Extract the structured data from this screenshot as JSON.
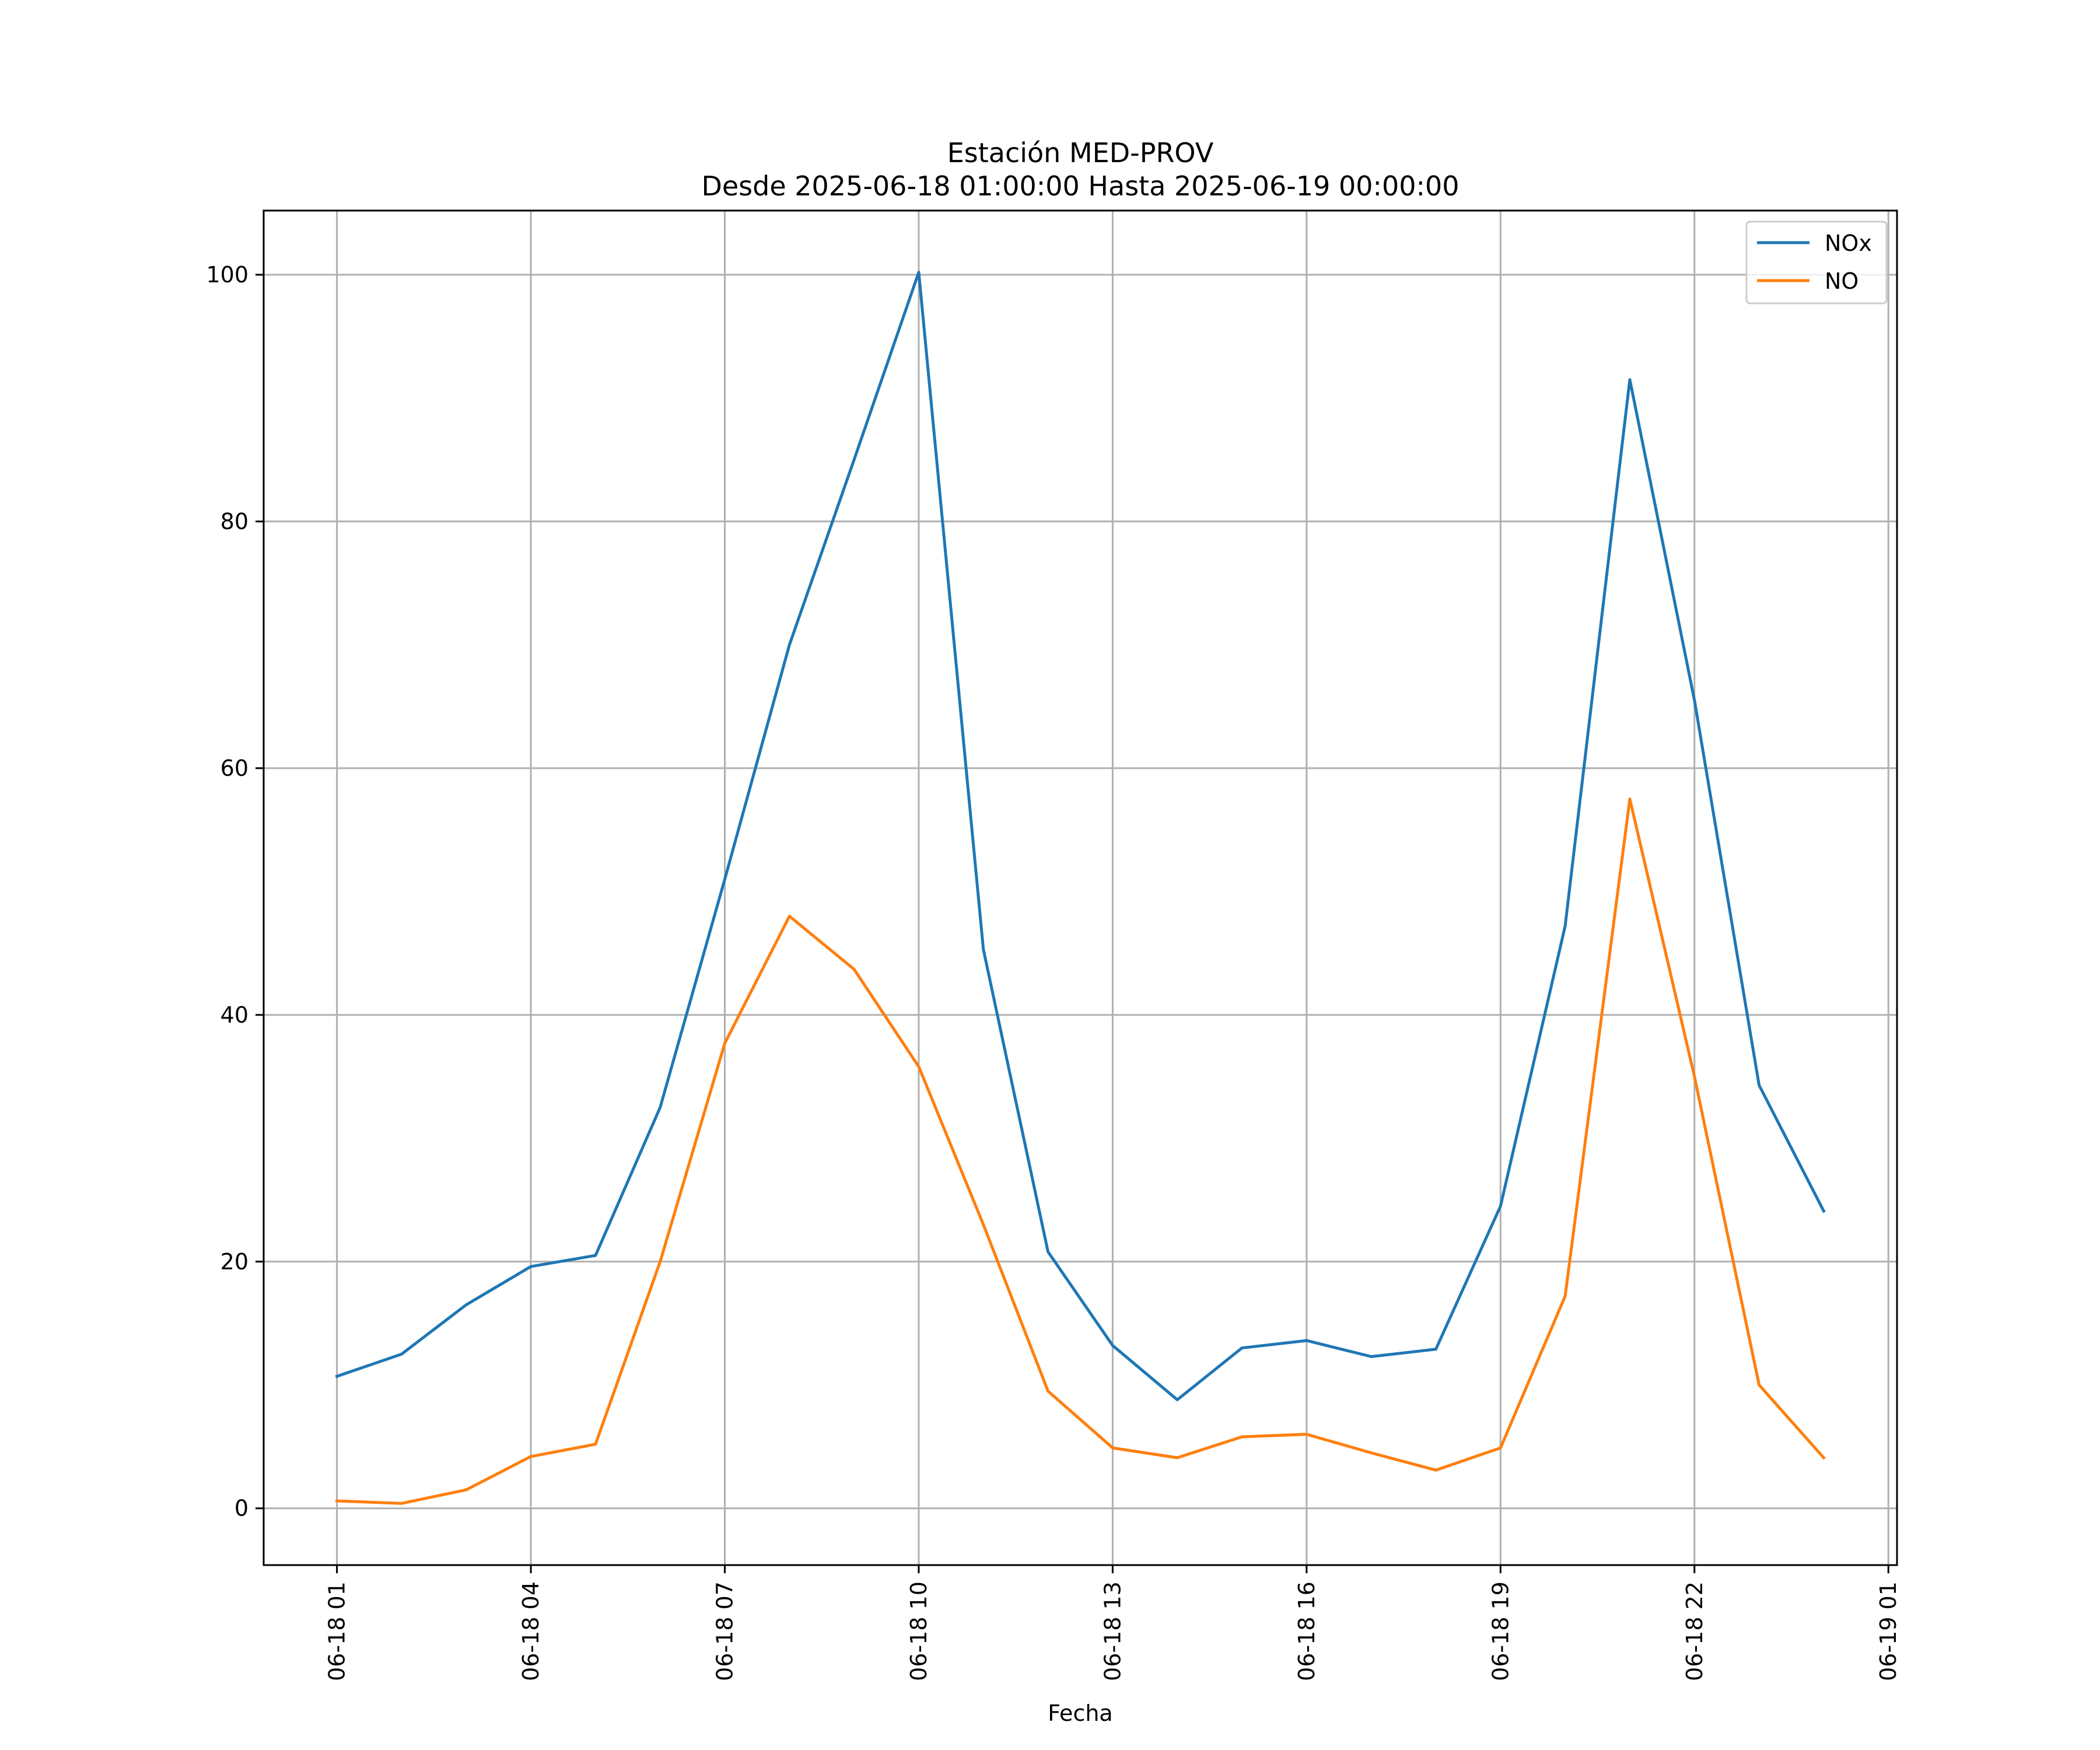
{
  "chart_data": {
    "type": "line",
    "title": "Estación MED-PROV",
    "subtitle": "Desde 2025-06-18 01:00:00 Hasta 2025-06-19 00:00:00",
    "xlabel": "Fecha",
    "ylabel": "",
    "x": [
      "2025-06-18 01:00",
      "2025-06-18 02:00",
      "2025-06-18 03:00",
      "2025-06-18 04:00",
      "2025-06-18 05:00",
      "2025-06-18 06:00",
      "2025-06-18 07:00",
      "2025-06-18 08:00",
      "2025-06-18 09:00",
      "2025-06-18 10:00",
      "2025-06-18 11:00",
      "2025-06-18 12:00",
      "2025-06-18 13:00",
      "2025-06-18 14:00",
      "2025-06-18 15:00",
      "2025-06-18 16:00",
      "2025-06-18 17:00",
      "2025-06-18 18:00",
      "2025-06-18 19:00",
      "2025-06-18 20:00",
      "2025-06-18 21:00",
      "2025-06-18 22:00",
      "2025-06-18 23:00",
      "2025-06-19 00:00"
    ],
    "series": [
      {
        "name": "NOx",
        "color": "#1f77b4",
        "values": [
          10.7,
          12.5,
          16.5,
          19.6,
          20.5,
          32.5,
          51.0,
          70.0,
          85.0,
          100.2,
          45.3,
          20.8,
          13.2,
          8.8,
          13.0,
          13.6,
          12.3,
          12.9,
          24.5,
          47.2,
          91.5,
          65.5,
          34.3,
          24.1
        ]
      },
      {
        "name": "NO",
        "color": "#ff7f0e",
        "values": [
          0.6,
          0.4,
          1.5,
          4.2,
          5.2,
          20.0,
          37.7,
          48.0,
          43.7,
          35.8,
          23.0,
          9.5,
          4.9,
          4.1,
          5.8,
          6.0,
          4.5,
          3.1,
          4.9,
          17.2,
          57.5,
          35.0,
          10.0,
          4.1
        ]
      }
    ],
    "xlim": [
      "2025-06-17 23:52",
      "2025-06-19 01:08"
    ],
    "ylim": [
      -4.6,
      105.2
    ],
    "xticks": [
      "06-18 01",
      "06-18 04",
      "06-18 07",
      "06-18 10",
      "06-18 13",
      "06-18 16",
      "06-18 19",
      "06-18 22",
      "06-19 01"
    ],
    "yticks": [
      "0",
      "20",
      "40",
      "60",
      "80",
      "100"
    ],
    "ytick_values": [
      0,
      20,
      40,
      60,
      80,
      100
    ],
    "grid": true,
    "legend_position": "top-right"
  }
}
